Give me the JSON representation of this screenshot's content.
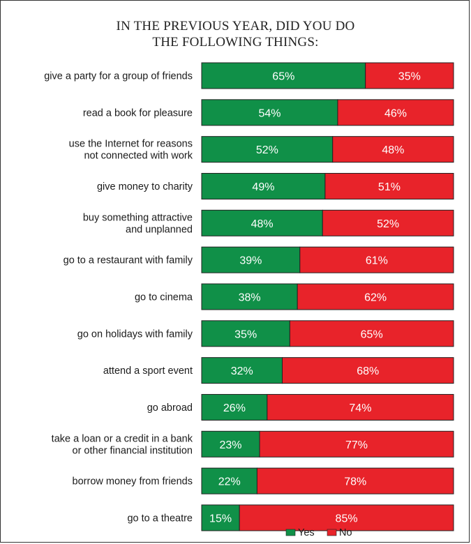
{
  "chart_data": {
    "type": "bar",
    "orientation": "horizontal",
    "stacked": true,
    "title": "IN THE PREVIOUS YEAR, DID YOU DO THE FOLLOWING THINGS:",
    "title_lines": [
      "IN THE PREVIOUS YEAR, DID YOU DO",
      "THE FOLLOWING THINGS:"
    ],
    "categories": [
      "give a party for a group of friends",
      "read a book for pleasure",
      "use the Internet for reasons not connected with work",
      "give money to charity",
      "buy something attractive and unplanned",
      "go to a restaurant with family",
      "go to cinema",
      "go on holidays with family",
      "attend a sport event",
      "go abroad",
      "take a loan or a credit in a bank or other financial institution",
      "borrow money from friends",
      "go to a theatre"
    ],
    "category_lines": [
      [
        "give a party for a group of friends"
      ],
      [
        "read a book for pleasure"
      ],
      [
        "use the Internet for reasons",
        "not connected with work"
      ],
      [
        "give money to charity"
      ],
      [
        "buy something attractive",
        "and unplanned"
      ],
      [
        "go to a restaurant with family"
      ],
      [
        "go to cinema"
      ],
      [
        "go on holidays with family"
      ],
      [
        "attend a sport event"
      ],
      [
        "go abroad"
      ],
      [
        "take a loan or a credit in a bank",
        "or other financial institution"
      ],
      [
        "borrow money from friends"
      ],
      [
        "go to a theatre"
      ]
    ],
    "series": [
      {
        "name": "Yes",
        "color": "#109048",
        "values": [
          65,
          54,
          52,
          49,
          48,
          39,
          38,
          35,
          32,
          26,
          23,
          22,
          15
        ]
      },
      {
        "name": "No",
        "color": "#e8232a",
        "values": [
          35,
          46,
          48,
          51,
          52,
          61,
          62,
          65,
          68,
          74,
          77,
          78,
          85
        ]
      }
    ],
    "unit": "%",
    "xlim": [
      0,
      100
    ],
    "grid": false,
    "legend_position": "bottom"
  }
}
